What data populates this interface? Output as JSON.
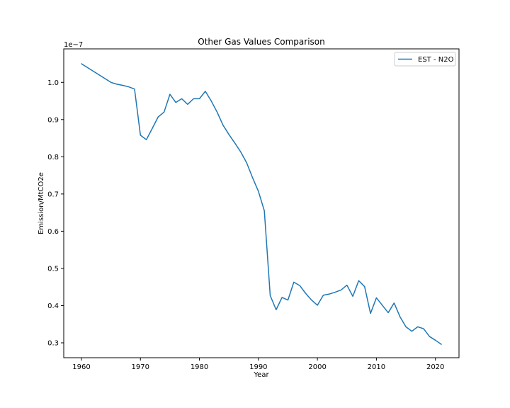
{
  "chart_data": {
    "type": "line",
    "title": "Other Gas Values Comparison",
    "xlabel": "Year",
    "ylabel": "Emission/MtCO2e",
    "y_offset_label": "1e−7",
    "xlim": [
      1957,
      2024
    ],
    "ylim": [
      0.26,
      1.09
    ],
    "x_ticks": [
      1960,
      1970,
      1980,
      1990,
      2000,
      2010,
      2020
    ],
    "y_ticks": [
      0.3,
      0.4,
      0.5,
      0.6,
      0.7,
      0.8,
      0.9,
      1.0
    ],
    "y_tick_labels": [
      "0.3",
      "0.4",
      "0.5",
      "0.6",
      "0.7",
      "0.8",
      "0.9",
      "1.0"
    ],
    "legend_position": "upper-right",
    "grid": false,
    "series": [
      {
        "name": "EST - N2O",
        "color": "#1f77b4",
        "x": [
          1960,
          1961,
          1962,
          1963,
          1964,
          1965,
          1966,
          1967,
          1968,
          1969,
          1970,
          1971,
          1972,
          1973,
          1974,
          1975,
          1976,
          1977,
          1978,
          1979,
          1980,
          1981,
          1982,
          1983,
          1984,
          1985,
          1986,
          1987,
          1988,
          1989,
          1990,
          1991,
          1992,
          1993,
          1994,
          1995,
          1996,
          1997,
          1998,
          1999,
          2000,
          2001,
          2002,
          2003,
          2004,
          2005,
          2006,
          2007,
          2008,
          2009,
          2010,
          2011,
          2012,
          2013,
          2014,
          2015,
          2016,
          2017,
          2018,
          2019,
          2020,
          2021
        ],
        "y": [
          1.05,
          1.04,
          1.03,
          1.02,
          1.01,
          1.0,
          0.995,
          0.992,
          0.988,
          0.982,
          0.858,
          0.846,
          0.876,
          0.907,
          0.92,
          0.968,
          0.946,
          0.956,
          0.941,
          0.956,
          0.956,
          0.976,
          0.95,
          0.92,
          0.885,
          0.86,
          0.837,
          0.813,
          0.784,
          0.744,
          0.707,
          0.655,
          0.427,
          0.389,
          0.422,
          0.415,
          0.463,
          0.454,
          0.433,
          0.415,
          0.401,
          0.428,
          0.431,
          0.436,
          0.442,
          0.455,
          0.425,
          0.467,
          0.451,
          0.379,
          0.421,
          0.401,
          0.381,
          0.407,
          0.37,
          0.343,
          0.331,
          0.343,
          0.338,
          0.317,
          0.307,
          0.296
        ]
      }
    ]
  }
}
